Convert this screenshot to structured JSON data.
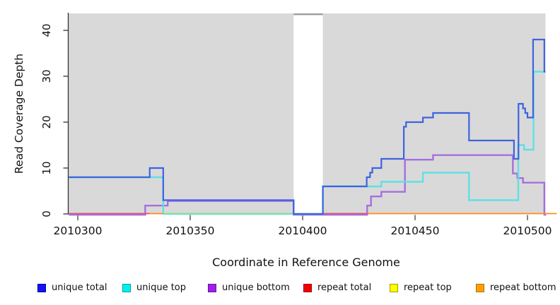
{
  "chart_data": {
    "type": "line",
    "subtype": "step-coverage",
    "title": "",
    "xlabel": "Coordinate in Reference Genome",
    "ylabel": "Read Coverage Depth",
    "xlim": [
      2010296,
      2010513
    ],
    "ylim": [
      0,
      43.7
    ],
    "grid": false,
    "plot_background": "#d9d9d9",
    "x_ticks": [
      "2010300",
      "2010350",
      "2010400",
      "2010450",
      "2010500"
    ],
    "y_ticks": [
      "0",
      "10",
      "20",
      "30",
      "40"
    ],
    "uncovered_gap": {
      "x_start": 2010396,
      "x_end": 2010409,
      "top_bar_color": "#9e9e9e"
    },
    "series": [
      {
        "name": "unique total",
        "color": "#3E63DF",
        "width": 2.2,
        "render": true,
        "end": 2010508,
        "points": [
          [
            2010296,
            8
          ],
          [
            2010332,
            10
          ],
          [
            2010338,
            3
          ],
          [
            2010396,
            0
          ],
          [
            2010409,
            6
          ],
          [
            2010428.5,
            8
          ],
          [
            2010430,
            9
          ],
          [
            2010431,
            10
          ],
          [
            2010435,
            12
          ],
          [
            2010445,
            19
          ],
          [
            2010446,
            20
          ],
          [
            2010453.5,
            21
          ],
          [
            2010458,
            22
          ],
          [
            2010474,
            16
          ],
          [
            2010494,
            12
          ],
          [
            2010496,
            24
          ],
          [
            2010498,
            23
          ],
          [
            2010499,
            22
          ],
          [
            2010500,
            21
          ],
          [
            2010502.5,
            38
          ],
          [
            2010507.5,
            31
          ]
        ]
      },
      {
        "name": "unique top",
        "color": "#5FE0E6",
        "width": 2.4,
        "render": true,
        "end": 2010508,
        "points": [
          [
            2010296,
            8
          ],
          [
            2010338,
            0
          ],
          [
            2010409,
            6
          ],
          [
            2010435,
            7
          ],
          [
            2010453.5,
            9
          ],
          [
            2010474,
            3
          ],
          [
            2010495.9,
            15
          ],
          [
            2010498.5,
            14
          ],
          [
            2010502.7,
            31
          ]
        ]
      },
      {
        "name": "unique bottom",
        "color": "#A66FDE",
        "width": 2.4,
        "render": true,
        "end": 2010508.3,
        "points": [
          [
            2010296,
            0
          ],
          [
            2010330,
            2
          ],
          [
            2010340,
            3
          ],
          [
            2010396,
            0
          ],
          [
            2010428.7,
            2
          ],
          [
            2010430.4,
            4
          ],
          [
            2010435,
            5
          ],
          [
            2010445.5,
            12
          ],
          [
            2010458,
            13
          ],
          [
            2010493.5,
            9
          ],
          [
            2010495.5,
            8
          ],
          [
            2010498,
            7
          ],
          [
            2010507.5,
            0
          ]
        ]
      },
      {
        "name": "repeat total",
        "color": "#DE5377",
        "width": 1.8,
        "render": false,
        "end": 2010429,
        "points": [
          [
            2010296,
            0
          ]
        ]
      },
      {
        "name": "repeat top",
        "color": "#FFFF00",
        "width": 1.8,
        "render": false,
        "end": 2010513,
        "points": [
          [
            2010296,
            0
          ]
        ]
      },
      {
        "name": "repeat bottom",
        "color": "#FF8C1A",
        "width": 1.8,
        "render": false,
        "end": 2010513,
        "points": [
          [
            2010296,
            0
          ]
        ]
      }
    ],
    "baseline_segments": [
      {
        "series": "repeat total",
        "color": "#DE5377",
        "x0": 2010296,
        "x1": 2010332
      },
      {
        "series": "repeat bottom",
        "color": "#FF8C1A",
        "x0": 2010332,
        "x1": 2010338
      },
      {
        "series": "unique top over repeat top",
        "color": "#8FE08F",
        "x0": 2010338,
        "x1": 2010396
      },
      {
        "series": "repeat total",
        "color": "#DE5377",
        "x0": 2010409,
        "x1": 2010429
      },
      {
        "series": "repeat bottom",
        "color": "#FF8C1A",
        "x0": 2010429,
        "x1": 2010513
      }
    ]
  },
  "legend": {
    "items": [
      {
        "label": "unique total",
        "color": "#1414EE",
        "border": "#0000A0"
      },
      {
        "label": "unique top",
        "color": "#00F0F0",
        "border": "#00A0A0"
      },
      {
        "label": "unique bottom",
        "color": "#A01EE6",
        "border": "#6E14A0"
      },
      {
        "label": "repeat total",
        "color": "#F00000",
        "border": "#A00000"
      },
      {
        "label": "repeat top",
        "color": "#FFFF00",
        "border": "#A0A000"
      },
      {
        "label": "repeat bottom",
        "color": "#FFA000",
        "border": "#B47000"
      }
    ]
  }
}
